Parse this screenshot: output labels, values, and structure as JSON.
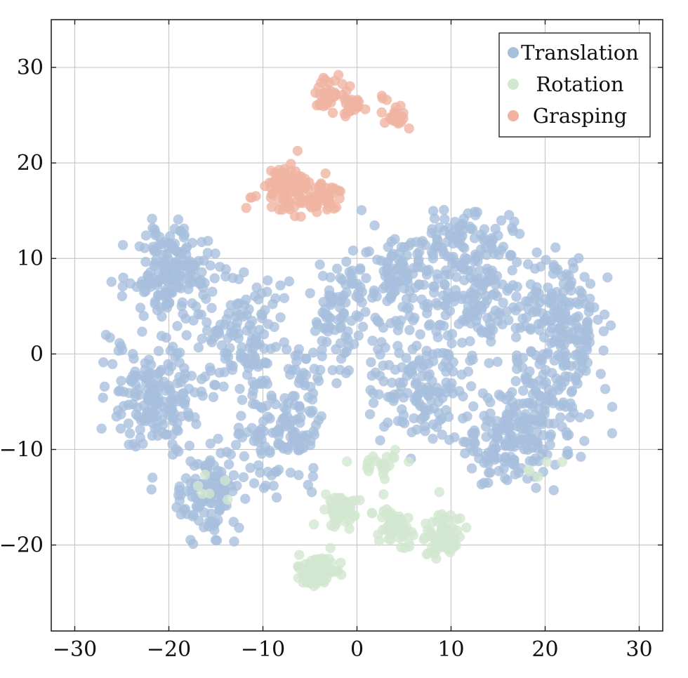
{
  "chart_data": {
    "type": "scatter",
    "title": "",
    "xlabel": "",
    "ylabel": "",
    "xlim": [
      -32.5,
      32.5
    ],
    "ylim": [
      -29,
      35
    ],
    "xticks": [
      -30,
      -20,
      -10,
      0,
      10,
      20,
      30
    ],
    "yticks": [
      -20,
      -10,
      0,
      10,
      20,
      30
    ],
    "xtick_labels": [
      "−30",
      "−20",
      "−10",
      "0",
      "10",
      "20",
      "30"
    ],
    "ytick_labels": [
      "−20",
      "−10",
      "0",
      "10",
      "20",
      "30"
    ],
    "grid": true,
    "legend_position": "top-right",
    "series": [
      {
        "name": "Translation",
        "color": "#a7bfdc",
        "clusters": [
          {
            "center": [
              -19.5,
              8.5
            ],
            "spread": [
              3.2,
              3.2
            ],
            "count": 170
          },
          {
            "center": [
              -21.5,
              -4.5
            ],
            "spread": [
              3.0,
              4.0
            ],
            "count": 170
          },
          {
            "center": [
              -16.0,
              -15.0
            ],
            "spread": [
              2.3,
              3.0
            ],
            "count": 110
          },
          {
            "center": [
              -12.0,
              1.5
            ],
            "spread": [
              3.5,
              5.0
            ],
            "count": 140
          },
          {
            "center": [
              -9.0,
              -9.0
            ],
            "spread": [
              3.0,
              3.0
            ],
            "count": 90
          },
          {
            "center": [
              -6.0,
              -5.0
            ],
            "spread": [
              1.5,
              4.5
            ],
            "count": 55
          },
          {
            "center": [
              -1.5,
              3.5
            ],
            "spread": [
              2.5,
              4.0
            ],
            "count": 80
          },
          {
            "center": [
              4.0,
              8.0
            ],
            "spread": [
              3.5,
              3.0
            ],
            "count": 110
          },
          {
            "center": [
              7.0,
              -3.0
            ],
            "spread": [
              3.8,
              4.0
            ],
            "count": 150
          },
          {
            "center": [
              12.0,
              7.0
            ],
            "spread": [
              4.0,
              4.0
            ],
            "count": 160
          },
          {
            "center": [
              16.0,
              -9.0
            ],
            "spread": [
              3.5,
              3.5
            ],
            "count": 140
          },
          {
            "center": [
              19.5,
              -5.0
            ],
            "spread": [
              3.5,
              3.5
            ],
            "count": 110
          },
          {
            "center": [
              21.0,
              5.0
            ],
            "spread": [
              3.0,
              4.0
            ],
            "count": 120
          },
          {
            "center": [
              24.0,
              1.0
            ],
            "spread": [
              1.6,
              3.0
            ],
            "count": 50
          },
          {
            "center": [
              11.5,
              12.5
            ],
            "spread": [
              3.5,
              1.5
            ],
            "count": 55
          }
        ]
      },
      {
        "name": "Rotation",
        "color": "#d2e7d0",
        "clusters": [
          {
            "center": [
              -4.5,
              -22.8
            ],
            "spread": [
              1.6,
              1.0
            ],
            "count": 80
          },
          {
            "center": [
              -1.8,
              -16.3
            ],
            "spread": [
              1.2,
              1.2
            ],
            "count": 55
          },
          {
            "center": [
              3.8,
              -17.8
            ],
            "spread": [
              1.3,
              1.3
            ],
            "count": 60
          },
          {
            "center": [
              9.3,
              -19.0
            ],
            "spread": [
              1.3,
              1.6
            ],
            "count": 75
          },
          {
            "center": [
              2.5,
              -11.5
            ],
            "spread": [
              2.0,
              1.2
            ],
            "count": 22
          },
          {
            "center": [
              -16.0,
              -13.0
            ],
            "spread": [
              2.5,
              1.5
            ],
            "count": 6
          },
          {
            "center": [
              20.0,
              -13.0
            ],
            "spread": [
              1.5,
              1.5
            ],
            "count": 5
          }
        ]
      },
      {
        "name": "Grasping",
        "color": "#efb4a1",
        "clusters": [
          {
            "center": [
              -7.5,
              17.5
            ],
            "spread": [
              1.4,
              1.8
            ],
            "count": 80
          },
          {
            "center": [
              -4.0,
              16.8
            ],
            "spread": [
              1.3,
              1.2
            ],
            "count": 50
          },
          {
            "center": [
              -3.0,
              27.0
            ],
            "spread": [
              1.1,
              1.1
            ],
            "count": 40
          },
          {
            "center": [
              -0.5,
              26.0
            ],
            "spread": [
              1.0,
              1.0
            ],
            "count": 25
          },
          {
            "center": [
              4.5,
              24.8
            ],
            "spread": [
              0.9,
              0.7
            ],
            "count": 20
          },
          {
            "center": [
              -11.5,
              16.5
            ],
            "spread": [
              0.5,
              0.8
            ],
            "count": 4
          },
          {
            "center": [
              2.8,
              26.8
            ],
            "spread": [
              0.4,
              0.4
            ],
            "count": 3
          }
        ]
      }
    ]
  }
}
